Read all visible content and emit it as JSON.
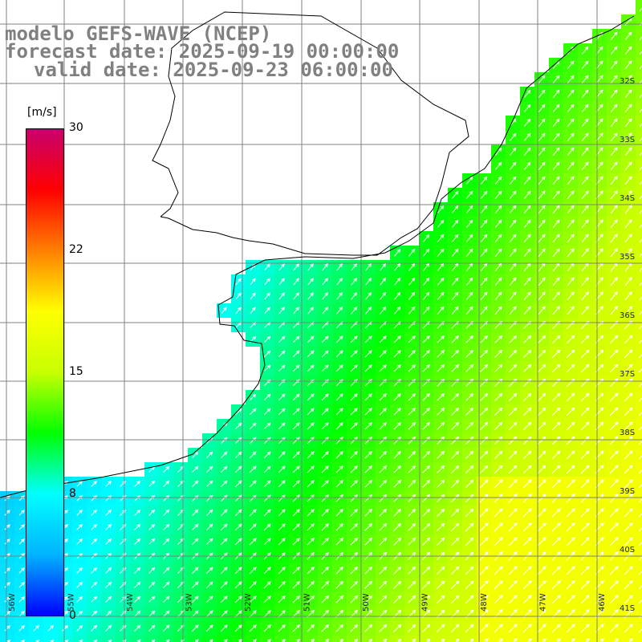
{
  "title": {
    "model": "modelo GEFS-WAVE (NCEP)",
    "forecast": "forecast date: 2025-09-19 00:00:00",
    "valid": "valid date: 2025-09-23 06:00:00"
  },
  "colorbar": {
    "unit": "[m/s]",
    "min": 0,
    "max": 30,
    "ticks": [
      "30",
      "22",
      "15",
      "8",
      "0"
    ],
    "stops": [
      "#0000ff",
      "#00b4ff",
      "#00ffff",
      "#00ff00",
      "#c8ff00",
      "#ffff00",
      "#ff8000",
      "#ff0000",
      "#c8006e"
    ]
  },
  "map": {
    "lon_labels": [
      "56W",
      "55W",
      "54W",
      "53W",
      "52W",
      "51W",
      "50W",
      "49W",
      "48W",
      "47W",
      "46W"
    ],
    "lat_labels": [
      "32S",
      "33S",
      "34S",
      "35S",
      "36S",
      "37S",
      "38S",
      "39S",
      "40S",
      "41S"
    ],
    "coastline_color": "#000000",
    "grid_color": "#808080",
    "arrow_color": "#ffffff"
  }
}
